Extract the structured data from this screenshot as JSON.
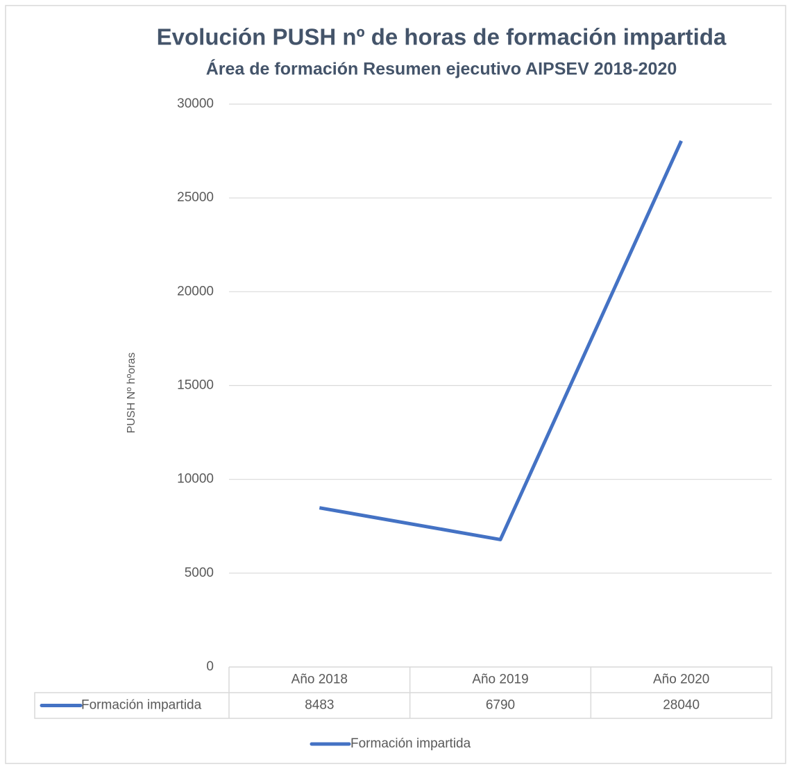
{
  "chart_data": {
    "type": "line",
    "title": "Evolución PUSH nº de horas de formación impartida",
    "subtitle": "Área de formación Resumen ejecutivo AIPSEV 2018-2020",
    "y_label": "PUSH Nº hºoras",
    "categories": [
      "Año 2018",
      "Año 2019",
      "Año 2020"
    ],
    "series": [
      {
        "name": "Formación impartida",
        "color": "#4472c4",
        "values": [
          8483,
          6790,
          28040
        ]
      }
    ],
    "ylim": [
      0,
      30000
    ],
    "yticks": [
      0,
      5000,
      10000,
      15000,
      20000,
      25000,
      30000
    ],
    "grid": true,
    "legend": "bottom",
    "data_table": true
  }
}
